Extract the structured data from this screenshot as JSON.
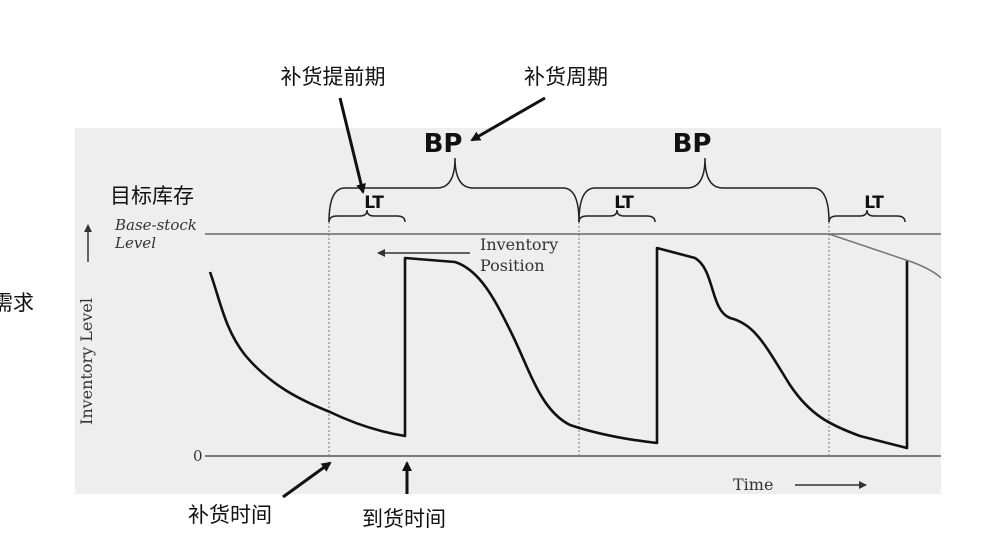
{
  "labels": {
    "lead_time_cn": "补货提前期",
    "review_period_cn": "补货周期",
    "target_stock_cn": "目标库存",
    "demand_cn": "需求",
    "order_time_cn": "补货时间",
    "arrival_time_cn": "到货时间"
  },
  "plot": {
    "base_stock_line1": "Base-stock",
    "base_stock_line2": "Level",
    "inventory_position_line1": "Inventory",
    "inventory_position_line2": "Position",
    "y_axis_label": "Inventory Level",
    "zero_label": "0",
    "x_axis_label": "Time"
  },
  "braces": {
    "bp": [
      "BP",
      "BP"
    ],
    "lt": [
      "LT",
      "LT",
      "LT"
    ]
  }
}
